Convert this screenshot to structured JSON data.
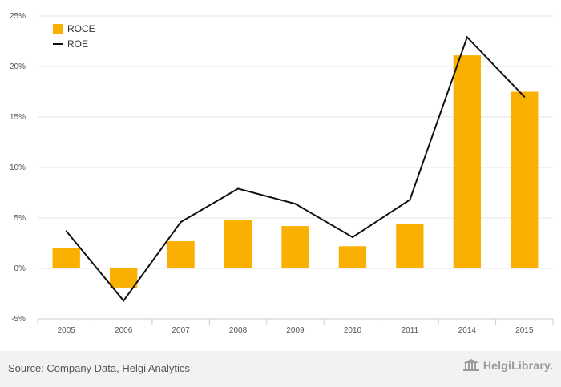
{
  "chart_data": {
    "type": "bar",
    "categories": [
      "2005",
      "2006",
      "2007",
      "2008",
      "2009",
      "2010",
      "2011",
      "2014",
      "2015"
    ],
    "series": [
      {
        "name": "ROCE",
        "type": "bar",
        "color": "#f9b000",
        "values": [
          2.0,
          -1.9,
          2.7,
          4.8,
          4.2,
          2.2,
          4.4,
          21.1,
          17.5
        ]
      },
      {
        "name": "ROE",
        "type": "line",
        "color": "#111111",
        "values": [
          3.7,
          -3.2,
          4.6,
          7.9,
          6.4,
          3.1,
          6.8,
          22.9,
          17.0
        ]
      }
    ],
    "ylim": [
      -5,
      25
    ],
    "yticks": [
      -5,
      0,
      5,
      10,
      15,
      20,
      25
    ],
    "ytick_labels": [
      "-5%",
      "0%",
      "5%",
      "10%",
      "15%",
      "20%",
      "25%"
    ],
    "grid": true,
    "legend": "top-left"
  },
  "footer": {
    "source": "Source: Company Data, Helgi Analytics",
    "logo_text": "HelgiLibrary."
  },
  "colors": {
    "bar": "#f9b000",
    "line": "#111111",
    "grid": "#e6e6e6"
  }
}
